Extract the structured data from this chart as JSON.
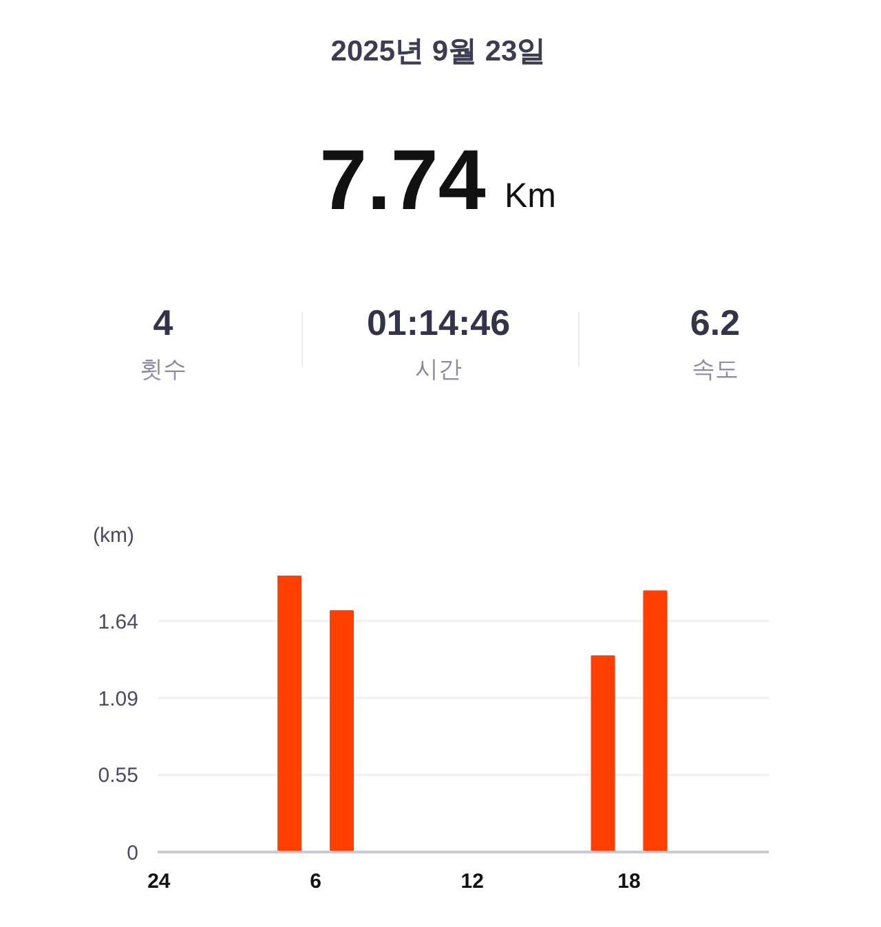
{
  "chart_data": {
    "type": "bar",
    "title": "2025년 9월 23일",
    "ylabel": "(km)",
    "annotations": [
      "7.74",
      "Km",
      "4",
      "횟수",
      "01:14:46",
      "시간",
      "6.2",
      "속도"
    ],
    "categories": [
      "24",
      null,
      null,
      null,
      null,
      null,
      "6",
      null,
      null,
      null,
      null,
      null,
      "12",
      null,
      null,
      null,
      null,
      null,
      "18",
      null,
      null,
      null,
      null,
      null
    ],
    "values": [
      null,
      null,
      null,
      null,
      null,
      1.96,
      null,
      1.71,
      null,
      null,
      null,
      null,
      null,
      null,
      null,
      null,
      null,
      1.39,
      null,
      1.85,
      null,
      null,
      null,
      null
    ],
    "color": "#ff4000",
    "ylim": [
      0,
      1.96
    ],
    "yticks": [
      0,
      0.55,
      1.09,
      1.64
    ],
    "grid": "y"
  }
}
